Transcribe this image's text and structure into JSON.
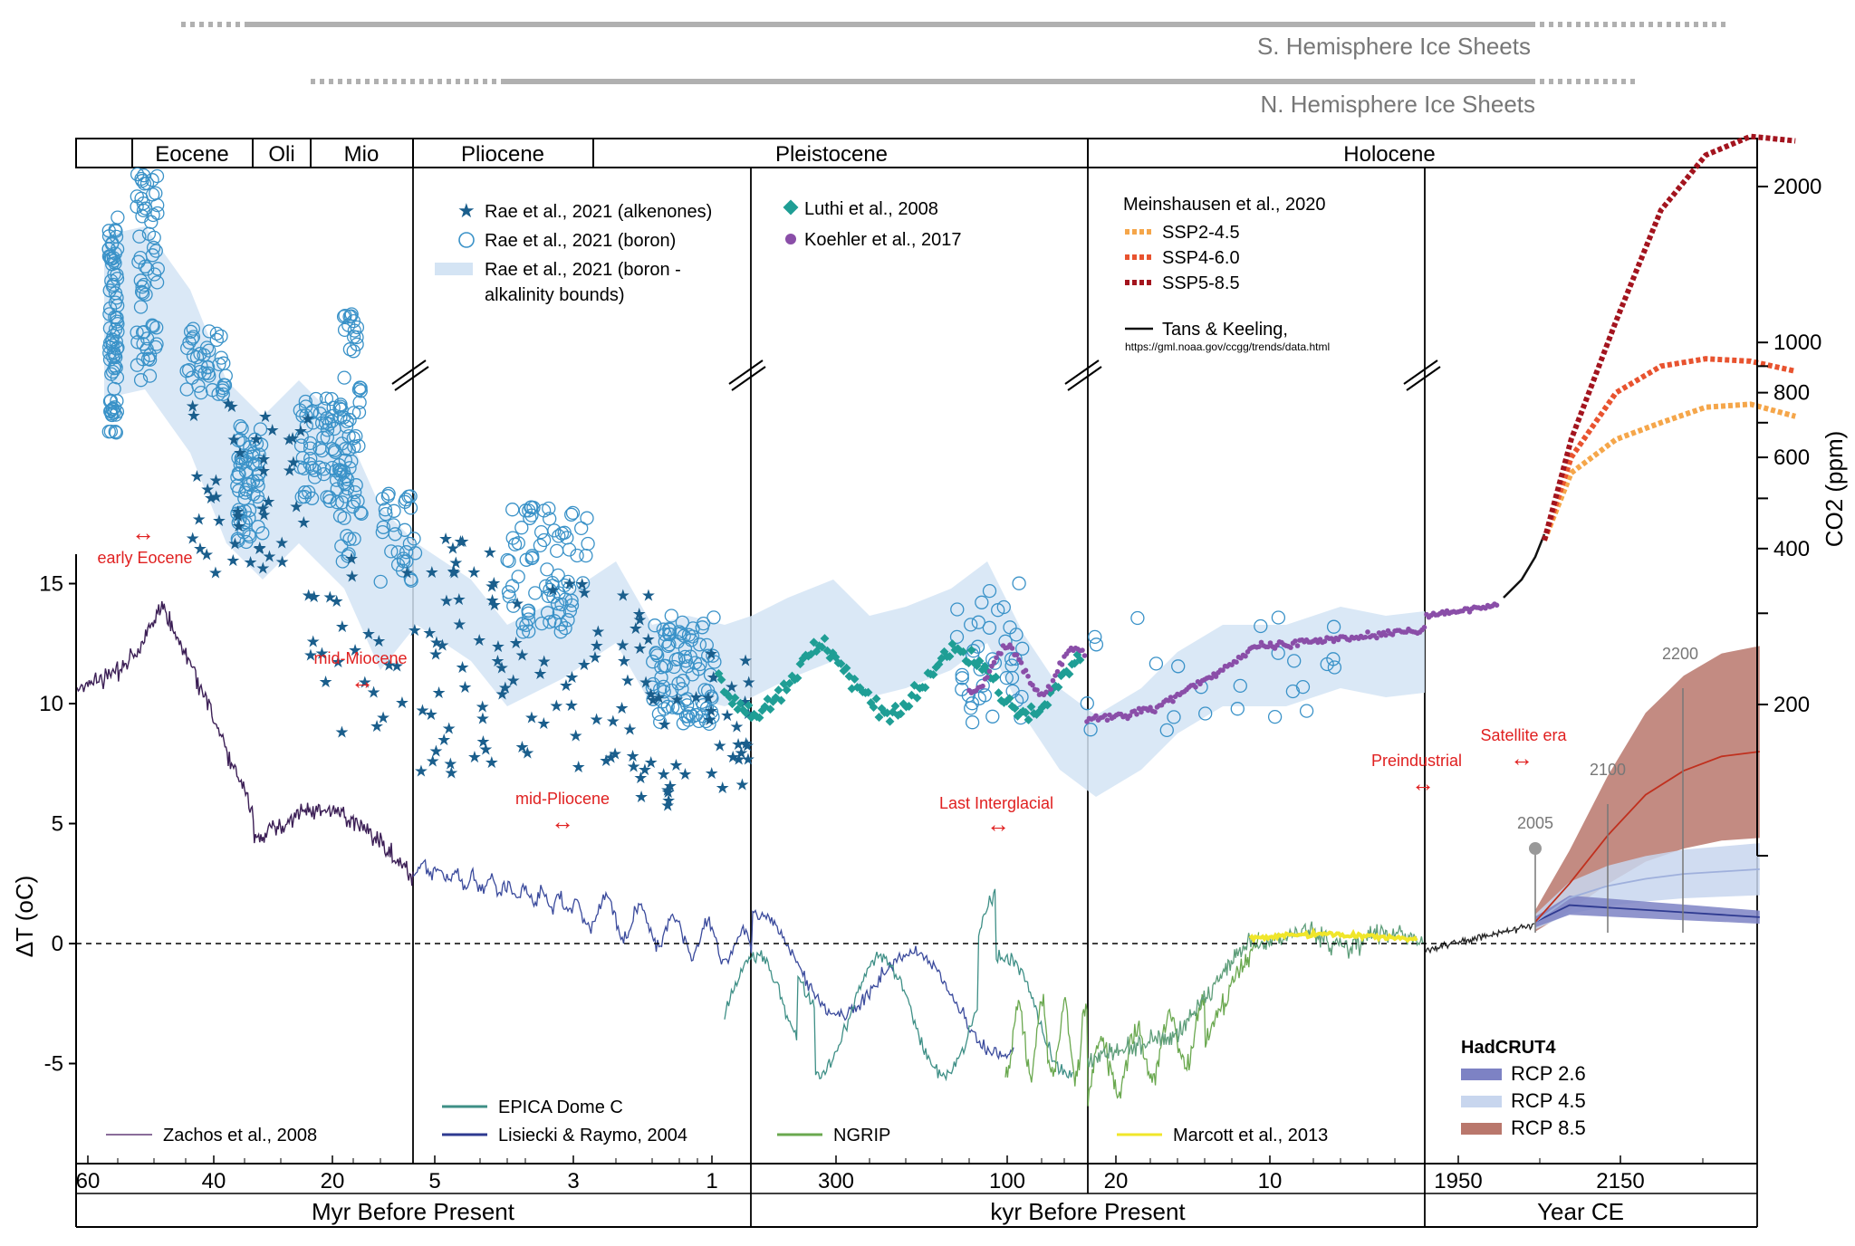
{
  "chart_data": {
    "type": "line",
    "ice_sheets": [
      {
        "label": "S. Hemisphere Ice Sheets"
      },
      {
        "label": "N. Hemisphere Ice Sheets"
      }
    ],
    "epochs": [
      "Eocene",
      "Oli",
      "Mio",
      "Pliocene",
      "Pleistocene",
      "Holocene"
    ],
    "left_axis": {
      "label": "ΔT (oC)",
      "ticks": [
        "15",
        "10",
        "5",
        "0",
        "-5"
      ],
      "values": [
        15,
        10,
        5,
        0,
        -5
      ],
      "range": [
        -9,
        16
      ]
    },
    "right_axis": {
      "label": "CO2 (ppm)",
      "ticks": [
        "2000",
        "1000",
        "800",
        "600",
        "400",
        "200"
      ],
      "values": [
        2000,
        1000,
        800,
        600,
        400,
        200
      ],
      "scale": "log"
    },
    "x_panels": [
      {
        "axis_label": "Myr Before Present",
        "ticks": [
          "60",
          "40",
          "20",
          "5",
          "3",
          "1"
        ]
      },
      {
        "axis_label": "kyr Before Present",
        "ticks": [
          "300",
          "100",
          "20",
          "10"
        ]
      },
      {
        "axis_label": "Year CE",
        "ticks": [
          "1950",
          "2150"
        ]
      }
    ],
    "legend_co2": [
      {
        "label": "Rae et al., 2021 (alkenones)",
        "marker": "star",
        "color": "#1a5e8c"
      },
      {
        "label": "Rae et al., 2021 (boron)",
        "marker": "open-circle",
        "color": "#3a92c8"
      },
      {
        "label": "Rae et al., 2021 (boron -",
        "marker": "band",
        "color": "#d4e4f4"
      },
      {
        "label": "alkalinity bounds)",
        "marker": "none",
        "color": "#d4e4f4"
      },
      {
        "label": "Luthi et al., 2008",
        "marker": "diamond",
        "color": "#1f9e95"
      },
      {
        "label": "Koehler et al., 2017",
        "marker": "dot",
        "color": "#8a4ea8"
      },
      {
        "label": "Meinshausen et al., 2020",
        "marker": "none",
        "color": "#222222"
      },
      {
        "label": "SSP2-4.5",
        "marker": "dash",
        "color": "#f5a64a"
      },
      {
        "label": "SSP4-6.0",
        "marker": "dash",
        "color": "#e8532f"
      },
      {
        "label": "SSP5-8.5",
        "marker": "dash",
        "color": "#a3141e"
      },
      {
        "label": "Tans & Keeling,",
        "marker": "line",
        "color": "#111111"
      },
      {
        "label": "https://gml.noaa.gov/ccgg/trends/data.html",
        "marker": "none",
        "color": "#111111"
      }
    ],
    "legend_temp": [
      {
        "label": "Zachos et al., 2008",
        "color": "#8a6d9a"
      },
      {
        "label": "EPICA Dome C",
        "color": "#3e8f86"
      },
      {
        "label": "Lisiecki & Raymo, 2004",
        "color": "#2e3a90"
      },
      {
        "label": "NGRIP",
        "color": "#6aa84f"
      },
      {
        "label": "Marcott et al., 2013",
        "color": "#f0e62a"
      }
    ],
    "legend_hadcrut": {
      "title": "HadCRUT4",
      "items": [
        {
          "label": "RCP 2.6",
          "color": "#7d82c4"
        },
        {
          "label": "RCP 4.5",
          "color": "#c8d6ee"
        },
        {
          "label": "RCP 8.5",
          "color": "#b9776c"
        }
      ]
    },
    "annotations": [
      {
        "label": "early Eocene"
      },
      {
        "label": "mid-Miocene"
      },
      {
        "label": "mid-Pliocene"
      },
      {
        "label": "Last Interglacial"
      },
      {
        "label": "Preindustrial"
      },
      {
        "label": "Satellite era"
      }
    ],
    "year_markers": [
      "2005",
      "2100",
      "2200"
    ],
    "series_co2": [
      {
        "name": "SSP2-4.5",
        "x": [
          2020,
          2050,
          2100,
          2150,
          2200,
          2250,
          2300
        ],
        "values": [
          415,
          560,
          650,
          700,
          750,
          760,
          720
        ]
      },
      {
        "name": "SSP4-6.0",
        "x": [
          2020,
          2050,
          2100,
          2150,
          2200,
          2250,
          2300
        ],
        "values": [
          415,
          600,
          800,
          900,
          930,
          920,
          880
        ]
      },
      {
        "name": "SSP5-8.5",
        "x": [
          2020,
          2050,
          2100,
          2150,
          2200,
          2250,
          2300
        ],
        "values": [
          415,
          650,
          1100,
          1800,
          2300,
          2500,
          2450
        ]
      }
    ],
    "series_temp_rcp": [
      {
        "name": "RCP 2.6",
        "x": [
          2005,
          2050,
          2100,
          2150,
          2200,
          2250,
          2300
        ],
        "values": [
          0.9,
          1.6,
          1.5,
          1.4,
          1.3,
          1.2,
          1.1
        ]
      },
      {
        "name": "RCP 4.5",
        "x": [
          2005,
          2050,
          2100,
          2150,
          2200,
          2250,
          2300
        ],
        "values": [
          0.9,
          1.9,
          2.4,
          2.7,
          2.9,
          3.0,
          3.1
        ]
      },
      {
        "name": "RCP 8.5",
        "x": [
          2005,
          2050,
          2100,
          2150,
          2200,
          2250,
          2300
        ],
        "values": [
          0.9,
          2.5,
          4.5,
          6.2,
          7.2,
          7.8,
          8.0
        ]
      }
    ]
  }
}
